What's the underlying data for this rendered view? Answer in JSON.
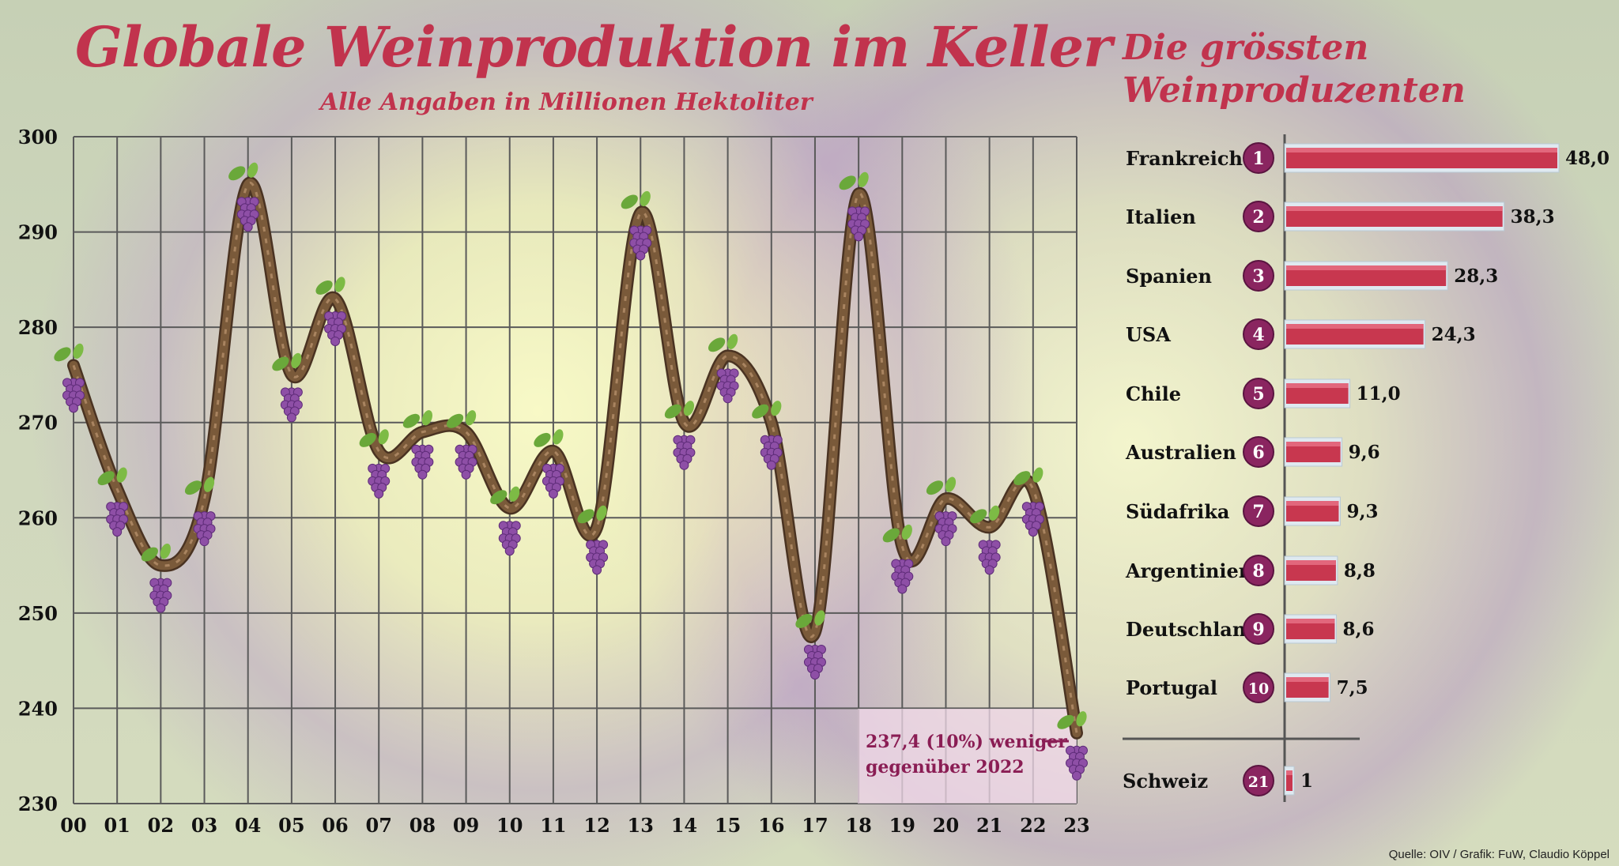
{
  "header": {
    "title": "Globale Weinproduktion im Keller",
    "subtitle": "Alle Angaben in Millionen Hektoliter",
    "side_title_line1": "Die grössten",
    "side_title_line2": "Weinproduzenten"
  },
  "annotation": {
    "line1": "237,4 (10%) weniger",
    "line2": "gegenüber 2022"
  },
  "source": "Quelle: OIV / Grafik: FuW, Claudio Köppel",
  "colors": {
    "accent": "#c1334d",
    "vine": "#7a5a3a",
    "grape": "#8e4fa6",
    "leaf": "#6aa83a",
    "bar": "#c8374f",
    "badge": "#8a2560"
  },
  "chart_data": [
    {
      "type": "line",
      "title": "Globale Weinproduktion im Keller",
      "subtitle": "Alle Angaben in Millionen Hektoliter",
      "x": [
        "00",
        "01",
        "02",
        "03",
        "04",
        "05",
        "06",
        "07",
        "08",
        "09",
        "10",
        "11",
        "12",
        "13",
        "14",
        "15",
        "16",
        "17",
        "18",
        "19",
        "20",
        "21",
        "22",
        "23"
      ],
      "series": [
        {
          "values": [
            276,
            263,
            255,
            262,
            295,
            275,
            283,
            267,
            269,
            269,
            261,
            267,
            259,
            292,
            270,
            277,
            270,
            248,
            294,
            257,
            262,
            259,
            263,
            237.4
          ]
        }
      ],
      "ylim": [
        230,
        300
      ],
      "yticks": [
        230,
        240,
        250,
        260,
        270,
        280,
        290,
        300
      ],
      "grid": true
    },
    {
      "type": "bar",
      "title": "Die grössten Weinproduzenten",
      "orientation": "horizontal",
      "categories": [
        "Frankreich",
        "Italien",
        "Spanien",
        "USA",
        "Chile",
        "Australien",
        "Südafrika",
        "Argentinien",
        "Deutschland",
        "Portugal",
        "Schweiz"
      ],
      "ranks": [
        "1",
        "2",
        "3",
        "4",
        "5",
        "6",
        "7",
        "8",
        "9",
        "10",
        "21"
      ],
      "values": [
        48.0,
        38.3,
        28.3,
        24.3,
        11.0,
        9.6,
        9.3,
        8.8,
        8.6,
        7.5,
        1
      ],
      "value_labels": [
        "48,0",
        "38,3",
        "28,3",
        "24,3",
        "11,0",
        "9,6",
        "9,3",
        "8,8",
        "8,6",
        "7,5",
        "1"
      ]
    }
  ]
}
